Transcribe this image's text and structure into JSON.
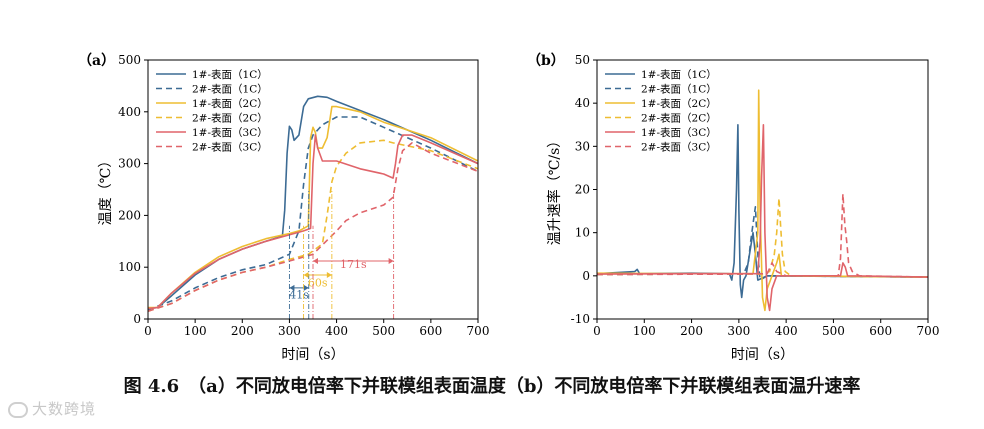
{
  "colors": {
    "c1": "#3c6b94",
    "c2": "#eebd32",
    "c3": "#e0646a",
    "axis": "#000000"
  },
  "caption": "图 4.6　（a）不同放电倍率下并联模组表面温度（b）不同放电倍率下并联模组表面温升速率",
  "watermark": "大数跨境",
  "chart_data": [
    {
      "id": "a",
      "panel_label": "（a）",
      "type": "line",
      "xlabel": "时间（s）",
      "ylabel": "温度（℃）",
      "xlim": [
        0,
        700
      ],
      "ylim": [
        0,
        500
      ],
      "xticks": [
        0,
        100,
        200,
        300,
        400,
        500,
        600,
        700
      ],
      "yticks": [
        0,
        100,
        200,
        300,
        400,
        500
      ],
      "legend": [
        "1#-表面（1C）",
        "2#-表面（1C）",
        "1#-表面（2C）",
        "2#-表面（2C）",
        "1#-表面（3C）",
        "2#-表面（3C）"
      ],
      "series": [
        {
          "name": "1#-表面（1C）",
          "color": "c1",
          "dash": false,
          "points": [
            [
              0,
              20
            ],
            [
              20,
              22
            ],
            [
              50,
              45
            ],
            [
              100,
              85
            ],
            [
              150,
              115
            ],
            [
              200,
              135
            ],
            [
              250,
              150
            ],
            [
              285,
              160
            ],
            [
              290,
              210
            ],
            [
              295,
              320
            ],
            [
              300,
              372
            ],
            [
              305,
              365
            ],
            [
              310,
              345
            ],
            [
              320,
              355
            ],
            [
              330,
              410
            ],
            [
              340,
              425
            ],
            [
              360,
              430
            ],
            [
              380,
              428
            ],
            [
              400,
              420
            ],
            [
              500,
              385
            ],
            [
              600,
              345
            ],
            [
              700,
              300
            ]
          ]
        },
        {
          "name": "2#-表面（1C）",
          "color": "c1",
          "dash": true,
          "points": [
            [
              0,
              18
            ],
            [
              50,
              35
            ],
            [
              100,
              60
            ],
            [
              150,
              80
            ],
            [
              200,
              95
            ],
            [
              250,
              105
            ],
            [
              300,
              125
            ],
            [
              320,
              170
            ],
            [
              330,
              260
            ],
            [
              340,
              330
            ],
            [
              350,
              355
            ],
            [
              370,
              375
            ],
            [
              400,
              390
            ],
            [
              450,
              390
            ],
            [
              500,
              370
            ],
            [
              600,
              330
            ],
            [
              700,
              285
            ]
          ]
        },
        {
          "name": "1#-表面（2C）",
          "color": "c2",
          "dash": false,
          "points": [
            [
              0,
              22
            ],
            [
              20,
              22
            ],
            [
              50,
              50
            ],
            [
              100,
              90
            ],
            [
              150,
              120
            ],
            [
              200,
              140
            ],
            [
              250,
              155
            ],
            [
              300,
              165
            ],
            [
              320,
              170
            ],
            [
              330,
              175
            ],
            [
              340,
              180
            ],
            [
              345,
              350
            ],
            [
              350,
              370
            ],
            [
              355,
              360
            ],
            [
              360,
              330
            ],
            [
              370,
              330
            ],
            [
              380,
              350
            ],
            [
              390,
              410
            ],
            [
              400,
              410
            ],
            [
              450,
              400
            ],
            [
              500,
              380
            ],
            [
              600,
              350
            ],
            [
              700,
              305
            ]
          ]
        },
        {
          "name": "2#-表面（2C）",
          "color": "c2",
          "dash": true,
          "points": [
            [
              0,
              15
            ],
            [
              50,
              30
            ],
            [
              100,
              55
            ],
            [
              150,
              75
            ],
            [
              200,
              90
            ],
            [
              250,
              100
            ],
            [
              300,
              115
            ],
            [
              340,
              125
            ],
            [
              370,
              145
            ],
            [
              380,
              200
            ],
            [
              390,
              265
            ],
            [
              400,
              295
            ],
            [
              420,
              320
            ],
            [
              450,
              340
            ],
            [
              500,
              345
            ],
            [
              520,
              340
            ],
            [
              600,
              325
            ],
            [
              700,
              290
            ]
          ]
        },
        {
          "name": "1#-表面（3C）",
          "color": "c3",
          "dash": false,
          "points": [
            [
              0,
              20
            ],
            [
              20,
              22
            ],
            [
              50,
              50
            ],
            [
              100,
              88
            ],
            [
              150,
              115
            ],
            [
              200,
              135
            ],
            [
              250,
              150
            ],
            [
              290,
              160
            ],
            [
              330,
              170
            ],
            [
              345,
              175
            ],
            [
              350,
              300
            ],
            [
              355,
              355
            ],
            [
              360,
              330
            ],
            [
              370,
              305
            ],
            [
              400,
              305
            ],
            [
              450,
              290
            ],
            [
              500,
              280
            ],
            [
              520,
              272
            ],
            [
              525,
              300
            ],
            [
              530,
              335
            ],
            [
              540,
              355
            ],
            [
              560,
              355
            ],
            [
              600,
              340
            ],
            [
              700,
              300
            ]
          ]
        },
        {
          "name": "2#-表面（3C）",
          "color": "c3",
          "dash": true,
          "points": [
            [
              0,
              15
            ],
            [
              50,
              30
            ],
            [
              100,
              55
            ],
            [
              150,
              75
            ],
            [
              200,
              90
            ],
            [
              250,
              100
            ],
            [
              300,
              112
            ],
            [
              350,
              125
            ],
            [
              400,
              170
            ],
            [
              420,
              190
            ],
            [
              450,
              205
            ],
            [
              500,
              220
            ],
            [
              520,
              235
            ],
            [
              530,
              290
            ],
            [
              540,
              325
            ],
            [
              560,
              340
            ],
            [
              600,
              320
            ],
            [
              700,
              285
            ]
          ]
        }
      ],
      "annotations": [
        {
          "from": 300,
          "to": 341,
          "label": "41s",
          "color": "c1",
          "y": 60,
          "label_y": 40
        },
        {
          "from": 330,
          "to": 390,
          "label": "60s",
          "color": "c2",
          "y": 85,
          "label_y": 63
        },
        {
          "from": 350,
          "to": 521,
          "label": "171s",
          "color": "c3",
          "y": 112,
          "label_y": 98
        }
      ]
    },
    {
      "id": "b",
      "panel_label": "（b）",
      "type": "line",
      "xlabel": "时间（s）",
      "ylabel": "温升速率（℃/s）",
      "xlim": [
        0,
        700
      ],
      "ylim": [
        -10,
        50
      ],
      "xticks": [
        0,
        100,
        200,
        300,
        400,
        500,
        600,
        700
      ],
      "yticks": [
        -10,
        0,
        10,
        20,
        30,
        40,
        50
      ],
      "legend": [
        "1#-表面（1C）",
        "2#-表面（1C）",
        "1#-表面（2C）",
        "2#-表面（2C）",
        "1#-表面（3C）",
        "2#-表面（3C）"
      ],
      "series": [
        {
          "name": "1#-表面（1C）",
          "color": "c1",
          "dash": false,
          "points": [
            [
              0,
              0.5
            ],
            [
              80,
              1
            ],
            [
              85,
              1.5
            ],
            [
              90,
              0.5
            ],
            [
              200,
              0.6
            ],
            [
              280,
              0.5
            ],
            [
              285,
              -1
            ],
            [
              290,
              3
            ],
            [
              295,
              20
            ],
            [
              298,
              35
            ],
            [
              300,
              15
            ],
            [
              303,
              -2
            ],
            [
              306,
              -5
            ],
            [
              310,
              -1
            ],
            [
              315,
              0
            ],
            [
              330,
              10
            ],
            [
              335,
              5
            ],
            [
              340,
              -1
            ],
            [
              360,
              0
            ],
            [
              700,
              -0.3
            ]
          ]
        },
        {
          "name": "2#-表面（1C）",
          "color": "c1",
          "dash": true,
          "points": [
            [
              0,
              0.3
            ],
            [
              200,
              0.4
            ],
            [
              310,
              0.4
            ],
            [
              320,
              3
            ],
            [
              325,
              8
            ],
            [
              330,
              12
            ],
            [
              335,
              16
            ],
            [
              340,
              5
            ],
            [
              345,
              -1
            ],
            [
              360,
              0
            ],
            [
              700,
              -0.3
            ]
          ]
        },
        {
          "name": "1#-表面（2C）",
          "color": "c2",
          "dash": false,
          "points": [
            [
              0,
              0.6
            ],
            [
              200,
              0.5
            ],
            [
              330,
              0.5
            ],
            [
              340,
              10
            ],
            [
              342,
              43
            ],
            [
              345,
              15
            ],
            [
              350,
              -5
            ],
            [
              355,
              -8
            ],
            [
              360,
              -3
            ],
            [
              370,
              0
            ],
            [
              380,
              3
            ],
            [
              385,
              5
            ],
            [
              390,
              0
            ],
            [
              400,
              0
            ],
            [
              700,
              -0.3
            ]
          ]
        },
        {
          "name": "2#-表面（2C）",
          "color": "c2",
          "dash": true,
          "points": [
            [
              0,
              0.3
            ],
            [
              200,
              0.4
            ],
            [
              350,
              0.4
            ],
            [
              365,
              1
            ],
            [
              375,
              5
            ],
            [
              380,
              10
            ],
            [
              385,
              18
            ],
            [
              388,
              12
            ],
            [
              392,
              5
            ],
            [
              398,
              1
            ],
            [
              410,
              0
            ],
            [
              700,
              -0.3
            ]
          ]
        },
        {
          "name": "1#-表面（3C）",
          "color": "c3",
          "dash": false,
          "points": [
            [
              0,
              0.4
            ],
            [
              200,
              0.5
            ],
            [
              340,
              0.5
            ],
            [
              345,
              8
            ],
            [
              348,
              23
            ],
            [
              352,
              35
            ],
            [
              355,
              10
            ],
            [
              360,
              -5
            ],
            [
              365,
              -8
            ],
            [
              370,
              -3
            ],
            [
              380,
              0
            ],
            [
              515,
              0
            ],
            [
              520,
              3
            ],
            [
              525,
              2
            ],
            [
              530,
              0
            ],
            [
              700,
              -0.3
            ]
          ]
        },
        {
          "name": "2#-表面（3C）",
          "color": "c3",
          "dash": true,
          "points": [
            [
              0,
              0.3
            ],
            [
              300,
              0.4
            ],
            [
              360,
              0.5
            ],
            [
              370,
              3
            ],
            [
              380,
              1
            ],
            [
              400,
              0
            ],
            [
              510,
              0
            ],
            [
              515,
              4
            ],
            [
              520,
              19
            ],
            [
              524,
              12
            ],
            [
              528,
              8
            ],
            [
              532,
              3
            ],
            [
              540,
              1
            ],
            [
              555,
              0
            ],
            [
              700,
              -0.3
            ]
          ]
        }
      ]
    }
  ]
}
